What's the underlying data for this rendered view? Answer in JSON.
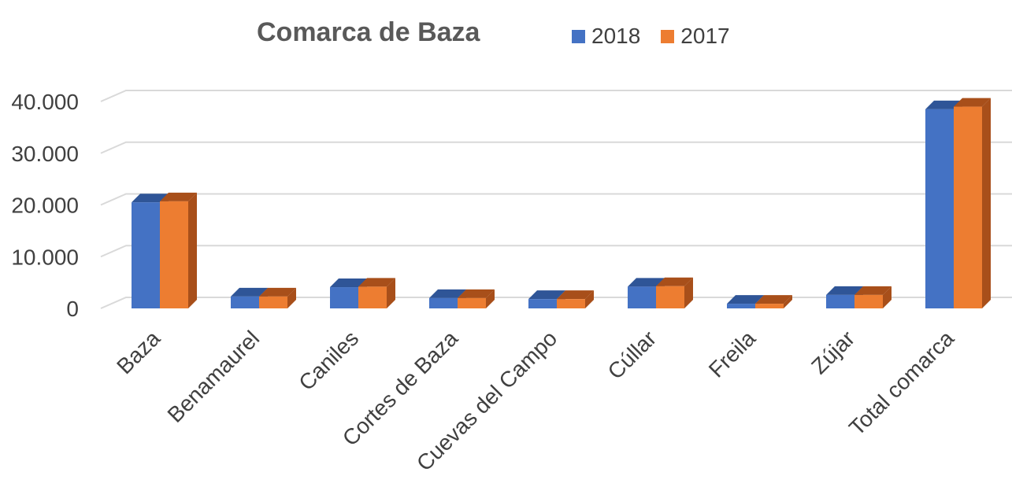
{
  "chart_data": {
    "type": "bar",
    "title": "Comarca de Baza",
    "categories": [
      "Baza",
      "Benamaurel",
      "Caniles",
      "Cortes de Baza",
      "Cuevas del Campo",
      "Cúllar",
      "Freila",
      "Zújar",
      "Total comarca"
    ],
    "series": [
      {
        "name": "2018",
        "color": "#4472C4",
        "side_color": "#2F5597",
        "values": [
          20500,
          2300,
          4100,
          2000,
          1800,
          4200,
          900,
          2600,
          38500
        ]
      },
      {
        "name": "2017",
        "color": "#ED7D31",
        "side_color": "#A84F1A",
        "values": [
          20700,
          2300,
          4200,
          2000,
          1800,
          4300,
          900,
          2600,
          39000
        ]
      }
    ],
    "yticks": [
      "0",
      "10.000",
      "20.000",
      "30.000",
      "40.000"
    ],
    "ytick_values": [
      0,
      10000,
      20000,
      30000,
      40000
    ],
    "ylim": [
      0,
      40000
    ],
    "xlabel": "",
    "ylabel": "",
    "legend_position": "top",
    "grid": true
  }
}
